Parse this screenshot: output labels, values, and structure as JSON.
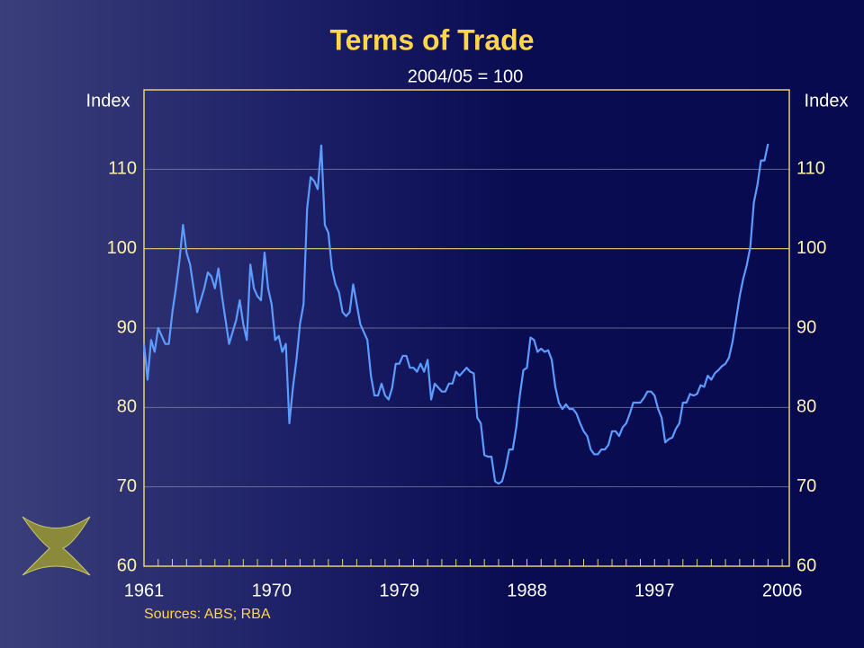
{
  "chart_data": {
    "type": "line",
    "title": "Terms of Trade",
    "subtitle": "2004/05 = 100",
    "y_label": "Index",
    "y2_label": "Index",
    "source": "Sources: ABS; RBA",
    "xlim": [
      1961,
      2006.5
    ],
    "ylim": [
      60,
      120
    ],
    "xticks": [
      1961,
      1970,
      1979,
      1988,
      1997,
      2006
    ],
    "xminor_ticks": [
      1961,
      1962,
      1963,
      1964,
      1965,
      1966,
      1967,
      1968,
      1969,
      1970,
      1971,
      1972,
      1973,
      1974,
      1975,
      1976,
      1977,
      1978,
      1979,
      1980,
      1981,
      1982,
      1983,
      1984,
      1985,
      1986,
      1987,
      1988,
      1989,
      1990,
      1991,
      1992,
      1993,
      1994,
      1995,
      1996,
      1997,
      1998,
      1999,
      2000,
      2001,
      2002,
      2003,
      2004,
      2005,
      2006
    ],
    "yticks": [
      60,
      70,
      80,
      90,
      100,
      110
    ],
    "grid": true,
    "reference_line": 100,
    "series": [
      {
        "name": "Terms of Trade",
        "color": "#5c9cff",
        "x": [
          1961,
          1961.25,
          1961.5,
          1961.75,
          1962,
          1962.25,
          1962.5,
          1962.75,
          1963,
          1963.25,
          1963.5,
          1963.75,
          1964,
          1964.25,
          1964.5,
          1964.75,
          1965,
          1965.25,
          1965.5,
          1965.75,
          1966,
          1966.25,
          1966.5,
          1966.75,
          1967,
          1967.25,
          1967.5,
          1967.75,
          1968,
          1968.25,
          1968.5,
          1968.75,
          1969,
          1969.25,
          1969.5,
          1969.75,
          1970,
          1970.25,
          1970.5,
          1970.75,
          1971,
          1971.25,
          1971.5,
          1971.75,
          1972,
          1972.25,
          1972.5,
          1972.75,
          1973,
          1973.25,
          1973.5,
          1973.75,
          1974,
          1974.25,
          1974.5,
          1974.75,
          1975,
          1975.25,
          1975.5,
          1975.75,
          1976,
          1976.25,
          1976.5,
          1976.75,
          1977,
          1977.25,
          1977.5,
          1977.75,
          1978,
          1978.25,
          1978.5,
          1978.75,
          1979,
          1979.25,
          1979.5,
          1979.75,
          1980,
          1980.25,
          1980.5,
          1980.75,
          1981,
          1981.25,
          1981.5,
          1981.75,
          1982,
          1982.25,
          1982.5,
          1982.75,
          1983,
          1983.25,
          1983.5,
          1983.75,
          1984,
          1984.25,
          1984.5,
          1984.75,
          1985,
          1985.25,
          1985.5,
          1985.75,
          1986,
          1986.25,
          1986.5,
          1986.75,
          1987,
          1987.25,
          1987.5,
          1987.75,
          1988,
          1988.25,
          1988.5,
          1988.75,
          1989,
          1989.25,
          1989.5,
          1989.75,
          1990,
          1990.25,
          1990.5,
          1990.75,
          1991,
          1991.25,
          1991.5,
          1991.75,
          1992,
          1992.25,
          1992.5,
          1992.75,
          1993,
          1993.25,
          1993.5,
          1993.75,
          1994,
          1994.25,
          1994.5,
          1994.75,
          1995,
          1995.25,
          1995.5,
          1995.75,
          1996,
          1996.25,
          1996.5,
          1996.75,
          1997,
          1997.25,
          1997.5,
          1997.75,
          1998,
          1998.25,
          1998.5,
          1998.75,
          1999,
          1999.25,
          1999.5,
          1999.75,
          2000,
          2000.25,
          2000.5,
          2000.75,
          2001,
          2001.25,
          2001.5,
          2001.75,
          2002,
          2002.25,
          2002.5,
          2002.75,
          2003,
          2003.25,
          2003.5,
          2003.75,
          2004,
          2004.25,
          2004.5,
          2004.75,
          2005
        ],
        "values": [
          88,
          83.5,
          88.5,
          87,
          90,
          89,
          88,
          88,
          92,
          95,
          98.5,
          103,
          99.5,
          98,
          95,
          92,
          93.5,
          95,
          97,
          96.5,
          95,
          97.5,
          94,
          91,
          88,
          89.5,
          91,
          93.5,
          90.5,
          88.5,
          98,
          95,
          94,
          93.5,
          99.5,
          95,
          93,
          88.5,
          89,
          87,
          88,
          78,
          82.5,
          86,
          90.5,
          93,
          105,
          109,
          108.5,
          107.5,
          113,
          103,
          102,
          97.5,
          95.5,
          94.5,
          92,
          91.5,
          92,
          95.5,
          93,
          90.5,
          89.5,
          88.5,
          84,
          81.5,
          81.5,
          83,
          81.5,
          81,
          82.5,
          85.5,
          85.5,
          86.5,
          86.5,
          85,
          85,
          84.5,
          85.5,
          84.5,
          86,
          81,
          83,
          82.5,
          82,
          82,
          83,
          83,
          84.5,
          84,
          84.5,
          85,
          84.5,
          84.3,
          78.7,
          78,
          74,
          73.8,
          73.8,
          70.7,
          70.4,
          70.7,
          72.4,
          74.7,
          74.7,
          77.5,
          81.5,
          84.7,
          85,
          88.8,
          88.5,
          87,
          87.4,
          87,
          87.2,
          86,
          82.6,
          80.6,
          79.8,
          80.4,
          79.8,
          79.8,
          79.2,
          78,
          77,
          76.4,
          74.7,
          74.1,
          74.1,
          74.7,
          74.7,
          75.3,
          77,
          77,
          76.4,
          77.5,
          78,
          79.2,
          80.6,
          80.6,
          80.6,
          81.2,
          82,
          82,
          81.5,
          79.8,
          78.7,
          75.6,
          76,
          76.2,
          77.3,
          78,
          80.6,
          80.6,
          81.7,
          81.5,
          81.7,
          82.8,
          82.6,
          84,
          83.5,
          84.3,
          84.7,
          85.2,
          85.5,
          86.3,
          88.3,
          91.1,
          94,
          96.2,
          97.9,
          100.2,
          105.8,
          108,
          111.1,
          111.1,
          113.2
        ]
      }
    ]
  }
}
